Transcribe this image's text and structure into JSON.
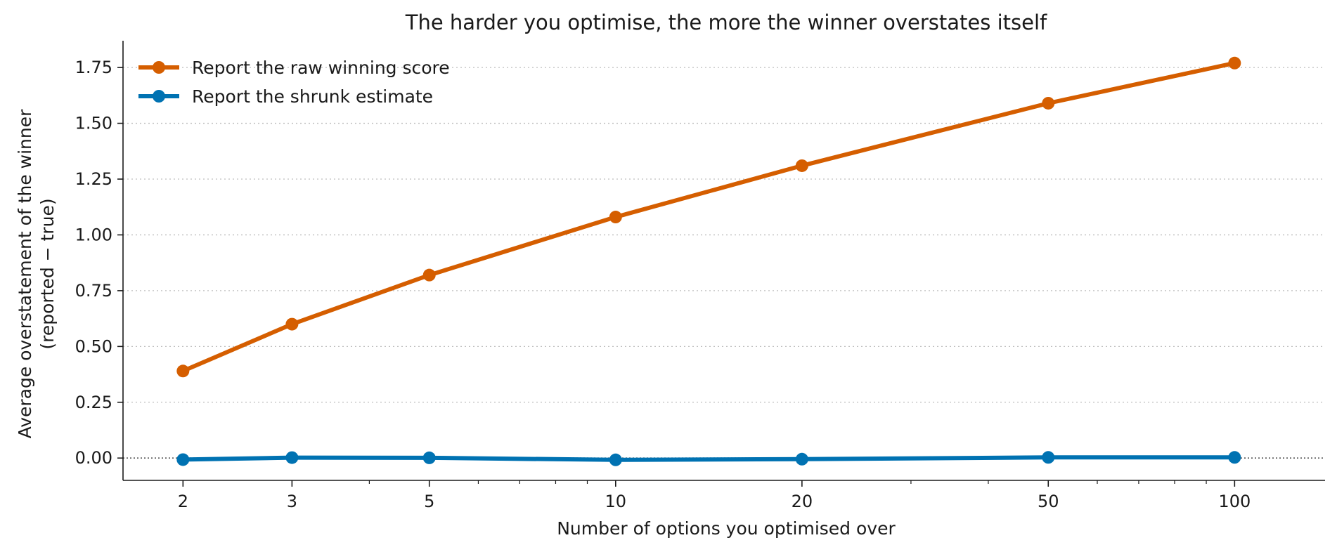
{
  "chart_data": {
    "type": "line",
    "title": "The harder you optimise, the more the winner overstates itself",
    "xlabel": "Number of options you optimised over",
    "ylabel": [
      "Average overstatement of the winner",
      "(reported − true)"
    ],
    "x_scale": "log",
    "x": [
      2,
      3,
      5,
      10,
      20,
      50,
      100
    ],
    "x_tick_labels": [
      "2",
      "3",
      "5",
      "10",
      "20",
      "50",
      "100"
    ],
    "y_ticks": [
      0.0,
      0.25,
      0.5,
      0.75,
      1.0,
      1.25,
      1.5,
      1.75
    ],
    "y_tick_labels": [
      "0.00",
      "0.25",
      "0.50",
      "0.75",
      "1.00",
      "1.25",
      "1.50",
      "1.75"
    ],
    "xlim": [
      1.6,
      140
    ],
    "ylim": [
      -0.1,
      1.87
    ],
    "grid": "horizontal dotted",
    "reference_line": 0,
    "legend_position": "upper-left",
    "series": [
      {
        "name": "Report the raw winning score",
        "color": "#D55E00",
        "values": [
          0.39,
          0.6,
          0.82,
          1.08,
          1.31,
          1.59,
          1.77
        ]
      },
      {
        "name": "Report the shrunk estimate",
        "color": "#0072B2",
        "values": [
          -0.007,
          0.002,
          0.001,
          -0.008,
          -0.005,
          0.003,
          0.003
        ]
      }
    ]
  }
}
